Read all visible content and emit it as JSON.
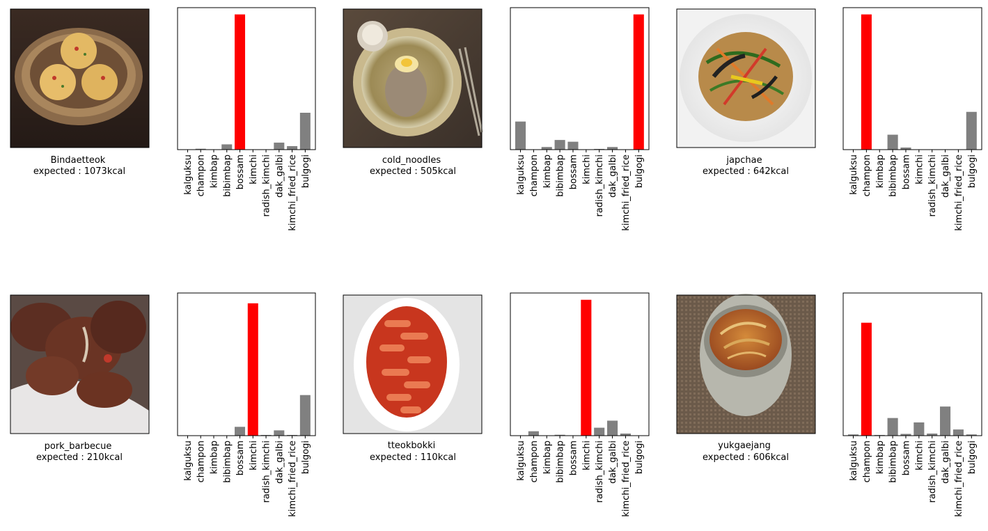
{
  "categories": [
    "kalguksu",
    "champon",
    "kimbap",
    "bibimbap",
    "bossam",
    "kimchi",
    "radish_kimchi",
    "dak_galbi",
    "kimchi_fried_rice",
    "bulgogi"
  ],
  "colors": {
    "highlight": "#ff0000",
    "bar": "#808080",
    "axis": "#000000"
  },
  "chart_data": [
    {
      "type": "bar",
      "image_label": "Bindaetteok",
      "caption": "expected : 1073kcal",
      "categories": [
        "kalguksu",
        "champon",
        "kimbap",
        "bibimbap",
        "bossam",
        "kimchi",
        "radish_kimchi",
        "dak_galbi",
        "kimchi_fried_rice",
        "bulgogi"
      ],
      "values": [
        0.0,
        0.005,
        0.0,
        0.03,
        0.77,
        0.0,
        0.0,
        0.04,
        0.02,
        0.21
      ],
      "highlight_index": 4,
      "ylim": [
        0,
        0.77
      ]
    },
    {
      "type": "bar",
      "image_label": "cold_noodles",
      "caption": "expected : 505kcal",
      "categories": [
        "kalguksu",
        "champon",
        "kimbap",
        "bibimbap",
        "bossam",
        "kimchi",
        "radish_kimchi",
        "dak_galbi",
        "kimchi_fried_rice",
        "bulgogi"
      ],
      "values": [
        0.16,
        0.0,
        0.015,
        0.055,
        0.045,
        0.0,
        0.004,
        0.015,
        0.0,
        0.77
      ],
      "highlight_index": 9,
      "ylim": [
        0,
        0.77
      ]
    },
    {
      "type": "bar",
      "image_label": "japchae",
      "caption": "expected : 642kcal",
      "categories": [
        "kalguksu",
        "champon",
        "kimbap",
        "bibimbap",
        "bossam",
        "kimchi",
        "radish_kimchi",
        "dak_galbi",
        "kimchi_fried_rice",
        "bulgogi"
      ],
      "values": [
        0.0,
        0.77,
        0.0,
        0.085,
        0.012,
        0.0,
        0.0,
        0.0,
        0.0,
        0.215
      ],
      "highlight_index": 1,
      "ylim": [
        0,
        0.77
      ]
    },
    {
      "type": "bar",
      "image_label": "pork_barbecue",
      "caption": "expected : 210kcal",
      "categories": [
        "kalguksu",
        "champon",
        "kimbap",
        "bibimbap",
        "bossam",
        "kimchi",
        "radish_kimchi",
        "dak_galbi",
        "kimchi_fried_rice",
        "bulgogi"
      ],
      "values": [
        0.0,
        0.0,
        0.0,
        0.0,
        0.05,
        0.75,
        0.004,
        0.03,
        0.004,
        0.23
      ],
      "highlight_index": 5,
      "ylim": [
        0,
        0.77
      ]
    },
    {
      "type": "bar",
      "image_label": "tteokbokki",
      "caption": "expected : 110kcal",
      "categories": [
        "kalguksu",
        "champon",
        "kimbap",
        "bibimbap",
        "bossam",
        "kimchi",
        "radish_kimchi",
        "dak_galbi",
        "kimchi_fried_rice",
        "bulgogi"
      ],
      "values": [
        0.0,
        0.025,
        0.0,
        0.005,
        0.0,
        0.77,
        0.045,
        0.085,
        0.012,
        0.0
      ],
      "highlight_index": 5,
      "ylim": [
        0,
        0.77
      ]
    },
    {
      "type": "bar",
      "image_label": "yukgaejang",
      "caption": "expected : 606kcal",
      "categories": [
        "kalguksu",
        "champon",
        "kimbap",
        "bibimbap",
        "bossam",
        "kimchi",
        "radish_kimchi",
        "dak_galbi",
        "kimchi_fried_rice",
        "bulgogi"
      ],
      "values": [
        0.007,
        0.64,
        0.004,
        0.1,
        0.01,
        0.075,
        0.012,
        0.165,
        0.035,
        0.007
      ],
      "highlight_index": 1,
      "ylim": [
        0,
        0.77
      ]
    }
  ]
}
